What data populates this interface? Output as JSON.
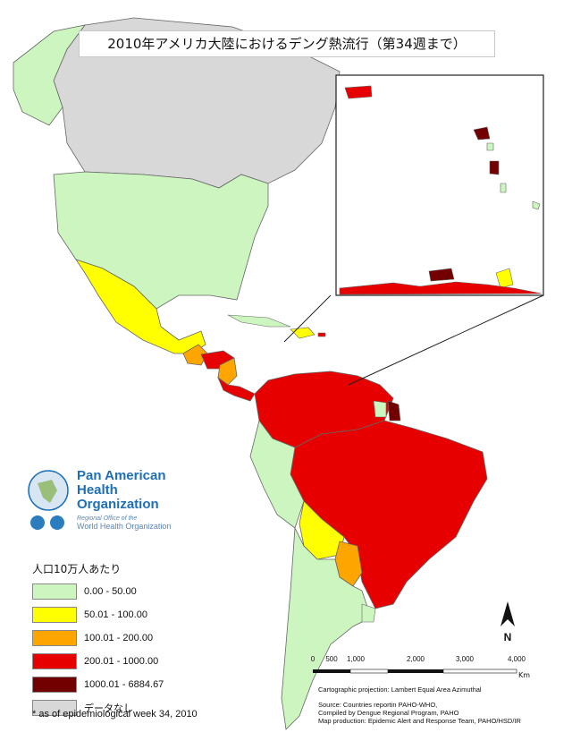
{
  "title": "2010年アメリカ大陸におけるデング熱流行（第34週まで）",
  "legend": {
    "title": "人口10万人あたり",
    "items": [
      {
        "label": "0.00 - 50.00",
        "color": "#ccf5bf"
      },
      {
        "label": "50.01 - 100.00",
        "color": "#ffff00"
      },
      {
        "label": "100.01 - 200.00",
        "color": "#ffa500"
      },
      {
        "label": "200.01 - 1000.00",
        "color": "#e60000"
      },
      {
        "label": "1000.01 - 6884.67",
        "color": "#730000"
      },
      {
        "label": "データなし",
        "color": "#d8d8d8"
      }
    ]
  },
  "footnote": "* as of epidemiological week 34, 2010",
  "logo": {
    "line1": "Pan American",
    "line2": "Health",
    "line3": "Organization",
    "sub1": "Regional Office of the",
    "sub2": "World Health Organization"
  },
  "scale": {
    "ticks": [
      "0",
      "500",
      "1,000",
      "2,000",
      "3,000",
      "4,000"
    ],
    "unit": "Km"
  },
  "credits": {
    "projection": "Cartographic projection: Lambert Equal Area Azimuthal",
    "source": "Source: Countries reportin PAHO-WHO,",
    "compiled": "Compiled by Dengue Regional Program, PAHO",
    "production": "Map production: Epidemic Alert and Response Team, PAHO/HSD/IR"
  },
  "north_label": "N"
}
